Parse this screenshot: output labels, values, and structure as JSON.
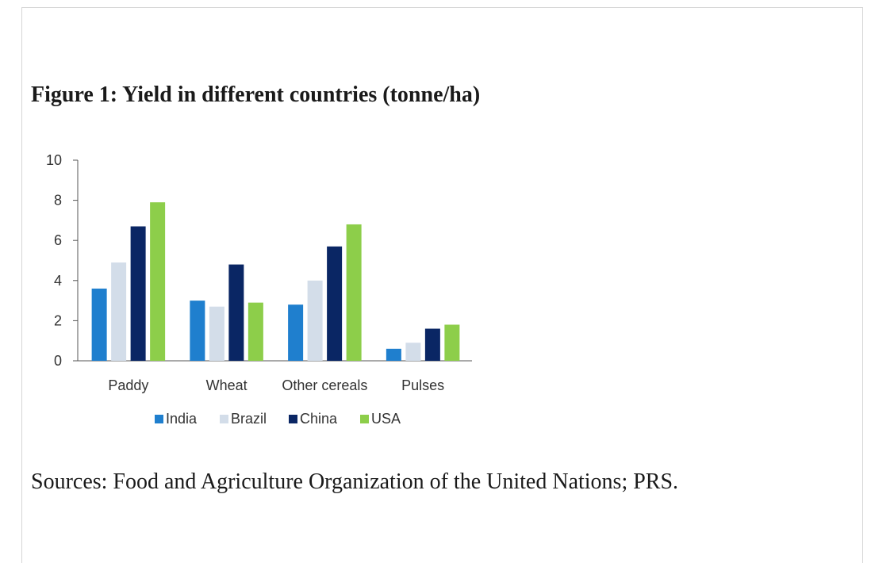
{
  "figure_title": "Figure 1: Yield in different countries (tonne/ha)",
  "sources": "Sources: Food and Agriculture Organization of the United Nations; PRS.",
  "chart_data": {
    "type": "bar",
    "title": "",
    "xlabel": "",
    "ylabel": "",
    "ylim": [
      0,
      10
    ],
    "yticks": [
      0,
      2,
      4,
      6,
      8,
      10
    ],
    "grid": false,
    "legend_position": "bottom",
    "categories": [
      "Paddy",
      "Wheat",
      "Other cereals",
      "Pulses"
    ],
    "series": [
      {
        "name": "India",
        "color": "#1f7fce",
        "values": [
          3.6,
          3.0,
          2.8,
          0.6
        ]
      },
      {
        "name": "Brazil",
        "color": "#d3dde9",
        "values": [
          4.9,
          2.7,
          4.0,
          0.9
        ]
      },
      {
        "name": "China",
        "color": "#0a2664",
        "values": [
          6.7,
          4.8,
          5.7,
          1.6
        ]
      },
      {
        "name": "USA",
        "color": "#8dce4a",
        "values": [
          7.9,
          2.9,
          6.8,
          1.8
        ]
      }
    ]
  }
}
